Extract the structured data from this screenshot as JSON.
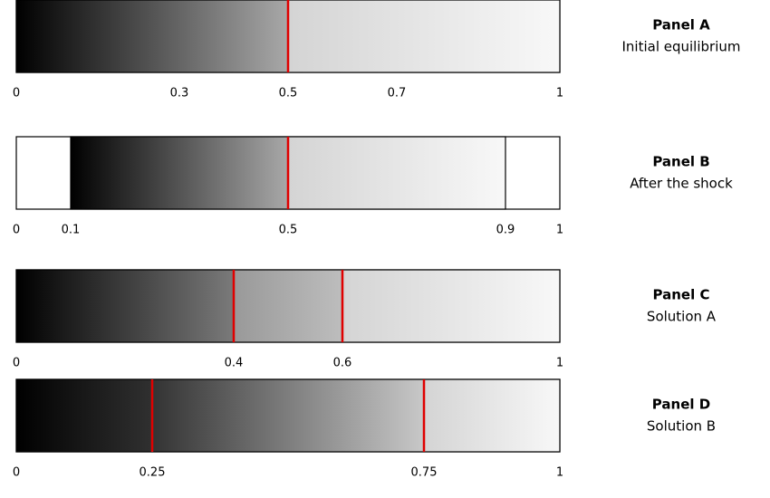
{
  "panels": [
    {
      "title": "Panel A",
      "subtitle": "Initial equilibrium",
      "ticks": [
        0,
        0.3,
        0.5,
        0.7,
        1
      ],
      "markers": [
        0.5
      ]
    },
    {
      "title": "Panel B",
      "subtitle": "After the shock",
      "ticks": [
        0,
        0.1,
        0.5,
        0.9,
        1
      ],
      "range": [
        0.1,
        0.9
      ],
      "markers": [
        0.5
      ]
    },
    {
      "title": "Panel C",
      "subtitle": "Solution A",
      "ticks": [
        0,
        0.4,
        0.6,
        1
      ],
      "markers": [
        0.4,
        0.6
      ]
    },
    {
      "title": "Panel D",
      "subtitle": "Solution B",
      "ticks": [
        0,
        0.25,
        0.75,
        1
      ],
      "markers": [
        0.25,
        0.75
      ]
    }
  ]
}
